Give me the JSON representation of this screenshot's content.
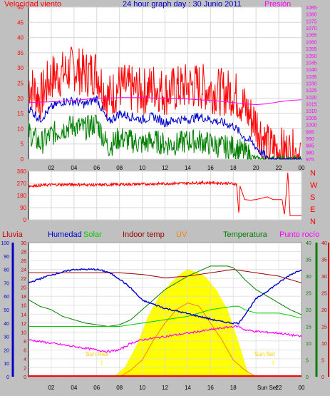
{
  "title": "24 hour graph day : 30 Junio 2011",
  "colors": {
    "bg": "#c0c0c0",
    "wind": "#ff0000",
    "wind_avg": "#0000cc",
    "wind_low": "#008000",
    "pressure": "#ff00ff",
    "direction": "#ff0000",
    "hum": "#0000cc",
    "solar": "#00cc00",
    "indoor": "#990000",
    "uv": "#ff8000",
    "temp": "#008000",
    "dew": "#ff00ff",
    "sun": "#ffff00",
    "axis_left_red": "#ff0000",
    "axis_right_pink": "#ff00ff"
  },
  "x_ticks": [
    "02",
    "04",
    "06",
    "08",
    "10",
    "12",
    "14",
    "16",
    "18",
    "20",
    "22",
    "00"
  ],
  "chart_data": [
    {
      "type": "line",
      "name": "wind",
      "title": "24 hour graph day : 30 Junio 2011",
      "ylabel": "Velocidad viento",
      "y2label": "Presión",
      "ylim": [
        0,
        50
      ],
      "y_ticks": [
        "0",
        "5",
        "10",
        "15",
        "20",
        "25",
        "30",
        "35",
        "40",
        "45",
        "50"
      ],
      "y2lim": [
        975,
        1085
      ],
      "y2_ticks": [
        "975",
        "980",
        "985",
        "990",
        "995",
        "1000",
        "1005",
        "1010",
        "1015",
        "1020",
        "1025",
        "1030",
        "1035",
        "1040",
        "1045",
        "1050",
        "1055",
        "1060",
        "1065",
        "1070",
        "1075",
        "1080",
        "1085"
      ],
      "series": [
        {
          "key": "gust",
          "x": [
            0,
            1,
            2,
            3,
            4,
            5,
            6,
            6.5,
            7,
            8,
            9,
            10,
            11,
            12,
            13,
            14,
            15,
            16,
            17,
            18,
            18.5,
            19,
            19.5,
            20,
            20.5,
            21,
            22,
            23,
            24
          ],
          "values": [
            25,
            20,
            27,
            28,
            30,
            28,
            29,
            24,
            20,
            24,
            23,
            22,
            24,
            22,
            23,
            24,
            24,
            23,
            22,
            22,
            20,
            17,
            14,
            12,
            8,
            4,
            3,
            2,
            2
          ]
        },
        {
          "key": "avg",
          "x": [
            0,
            1,
            2,
            3,
            4,
            5,
            6,
            6.5,
            7,
            8,
            9,
            10,
            11,
            12,
            13,
            14,
            15,
            16,
            17,
            18,
            18.5,
            19,
            19.5,
            20,
            20.5,
            21,
            22,
            23,
            24
          ],
          "values": [
            17,
            13,
            17,
            19,
            19,
            18,
            20,
            16,
            12,
            15,
            14,
            13,
            14,
            12,
            13,
            13,
            14,
            13,
            12,
            11,
            9,
            7,
            6,
            4,
            2,
            0.5,
            0,
            0,
            0
          ]
        },
        {
          "key": "low",
          "x": [
            0,
            1,
            2,
            3,
            4,
            5,
            6,
            6.5,
            7,
            8,
            9,
            10,
            11,
            12,
            13,
            14,
            15,
            16,
            17,
            18,
            18.5,
            19,
            19.5,
            20,
            20.5,
            21,
            22,
            23,
            24
          ],
          "values": [
            9,
            5,
            8,
            10,
            11,
            10,
            12,
            8,
            4,
            7,
            6,
            5,
            6,
            5,
            5,
            6,
            6,
            5,
            4,
            4,
            3,
            2,
            1,
            0,
            0,
            0,
            0,
            0,
            0
          ]
        },
        {
          "key": "pressure",
          "x": [
            0,
            2,
            4,
            6,
            8,
            10,
            12,
            14,
            16,
            18,
            19,
            20,
            21,
            22,
            23,
            24
          ],
          "values": [
            1016,
            1016.5,
            1017.5,
            1019,
            1019.5,
            1019.5,
            1019,
            1018.5,
            1017.5,
            1016,
            1015,
            1014.5,
            1015,
            1016.5,
            1017.5,
            1018
          ]
        }
      ]
    },
    {
      "type": "line",
      "name": "direction",
      "ylim": [
        0,
        360
      ],
      "y_ticks": [
        "0",
        "90",
        "180",
        "270",
        "360"
      ],
      "y2_ticks": [
        "N",
        "W",
        "S",
        "E",
        "N"
      ],
      "series": [
        {
          "key": "dir",
          "x": [
            0,
            2,
            4,
            6,
            8,
            10,
            12,
            14,
            16,
            17.5,
            18.3,
            18.5,
            18.6,
            19,
            19.5,
            20,
            20.5,
            21,
            21.5,
            22,
            22.3,
            22.5,
            22.8,
            23,
            23.5,
            24
          ],
          "values": [
            250,
            260,
            262,
            258,
            262,
            265,
            268,
            272,
            275,
            270,
            265,
            30,
            250,
            150,
            145,
            150,
            160,
            170,
            150,
            150,
            150,
            30,
            350,
            30,
            30,
            30
          ]
        }
      ]
    },
    {
      "type": "line",
      "name": "temperature",
      "ylabel": "Lluvia",
      "labels": [
        "Humedad",
        "Solar",
        "Indoor temp",
        "UV",
        "Temperatura",
        "Punto rocío"
      ],
      "rain_ticks": [
        "0",
        "10",
        "20",
        "30",
        "40",
        "50",
        "60",
        "70",
        "80",
        "90",
        "100"
      ],
      "hum_ticks": [
        "0",
        "2",
        "4",
        "6",
        "8",
        "10",
        "12",
        "14",
        "16",
        "18",
        "20",
        "22",
        "24",
        "26",
        "28",
        "30"
      ],
      "temp_ticks": [
        "0",
        "5",
        "10",
        "15",
        "20",
        "25",
        "30",
        "35",
        "40"
      ],
      "indoor_ticks": [
        "0",
        "5",
        "10",
        "15",
        "20",
        "25",
        "30",
        "35",
        "40"
      ],
      "sunrise_label": "Sun Rise",
      "sunset_label": "Sun Set",
      "xlim": [
        0,
        24
      ],
      "series": [
        {
          "key": "humidity",
          "x": [
            0,
            1,
            2,
            3,
            4,
            5,
            6,
            6.5,
            7,
            8,
            9,
            10,
            11,
            12,
            13,
            14,
            15,
            16,
            17,
            18,
            18.5,
            19,
            20,
            21,
            22,
            23,
            24
          ],
          "values": [
            70,
            73,
            76,
            78,
            80,
            80,
            80,
            79,
            78,
            73,
            66,
            57,
            54,
            51,
            49,
            47,
            45,
            43,
            41,
            40,
            40,
            46,
            58,
            64,
            70,
            76,
            80
          ]
        },
        {
          "key": "indoor",
          "x": [
            0,
            2,
            4,
            6,
            8,
            10,
            12,
            14,
            16,
            18,
            19,
            20,
            22,
            24
          ],
          "values": [
            31,
            31,
            31,
            31,
            31,
            30.5,
            29.5,
            30,
            31,
            32,
            31.5,
            31,
            30,
            28
          ]
        },
        {
          "key": "temp",
          "x": [
            0,
            1,
            2,
            3,
            4,
            5,
            6,
            7,
            8,
            9,
            10,
            11,
            12,
            13,
            14,
            15,
            16,
            17,
            17.5,
            18,
            18.5,
            19,
            20,
            21,
            22,
            23,
            24
          ],
          "values": [
            23,
            21,
            20,
            18,
            17,
            16,
            15.5,
            15,
            15.5,
            17,
            20,
            23,
            26,
            28,
            30,
            31.5,
            33,
            33,
            33,
            32.5,
            31,
            29,
            26,
            24,
            22,
            20,
            18.5
          ]
        },
        {
          "key": "solar",
          "x": [
            0,
            2,
            4,
            6,
            7,
            8,
            9,
            10,
            12,
            14,
            16,
            18,
            18.5,
            19,
            20,
            22,
            24
          ],
          "values": [
            15,
            15,
            15,
            15,
            15,
            15,
            15.5,
            16,
            17,
            18,
            20,
            21,
            21,
            20,
            19,
            19,
            17.5
          ]
        },
        {
          "key": "dew",
          "x": [
            0,
            2,
            4,
            6,
            7,
            8,
            9,
            10,
            12,
            14,
            16,
            18,
            18.5,
            19,
            20,
            22,
            24
          ],
          "values": [
            11,
            10,
            9,
            8,
            7.5,
            8,
            10,
            11,
            12,
            13,
            14,
            15,
            15,
            14,
            13.5,
            13,
            12
          ]
        },
        {
          "key": "solar_area",
          "x": [
            7.5,
            8.5,
            9.6,
            10.5,
            11.5,
            12.5,
            13.5,
            14,
            14.5,
            15.5,
            16.5,
            17.5,
            18.5,
            19.3,
            20.5
          ],
          "values": [
            0,
            3,
            10,
            18,
            24,
            28,
            31,
            32,
            31.5,
            30,
            26,
            20,
            10,
            1,
            0
          ]
        },
        {
          "key": "uv",
          "x": [
            8,
            9,
            10,
            11,
            12,
            13,
            14,
            15,
            16,
            17,
            18,
            19,
            20
          ],
          "values": [
            0,
            2,
            5,
            11,
            16,
            20,
            22,
            21,
            16,
            11,
            5,
            2,
            0
          ]
        }
      ]
    }
  ]
}
